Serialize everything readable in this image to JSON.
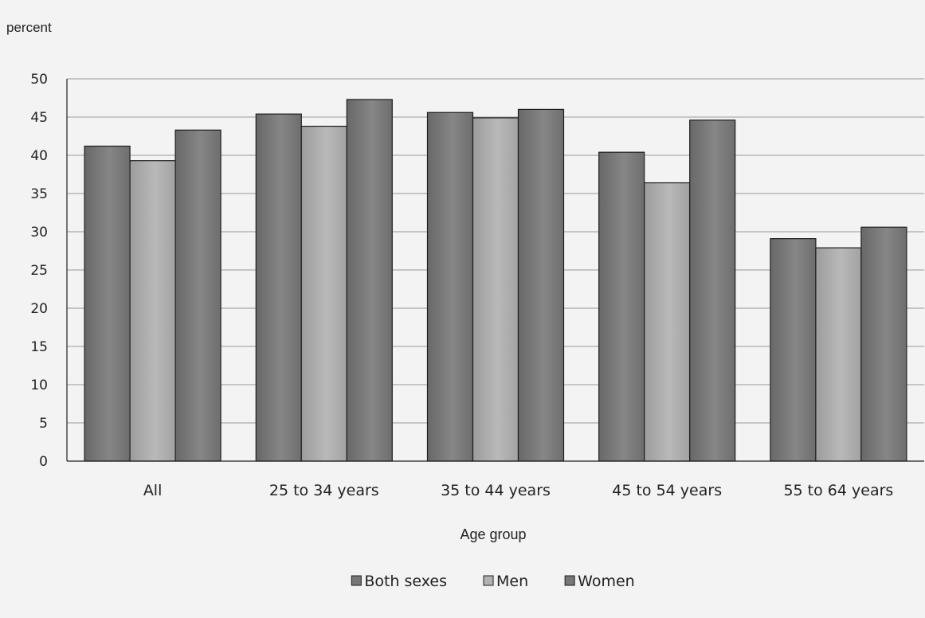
{
  "chart_data": {
    "type": "bar",
    "unit_label": "percent",
    "xlabel": "Age group",
    "ylabel": "",
    "ylim": [
      0,
      50
    ],
    "ytick_step": 5,
    "grid": true,
    "legend_position": "bottom-center",
    "categories": [
      "All",
      "25 to 34 years",
      "35 to 44 years",
      "45 to 54 years",
      "55 to 64 years"
    ],
    "series": [
      {
        "name": "Both sexes",
        "color": "#7a7a7a",
        "values": [
          41.2,
          45.4,
          45.6,
          40.4,
          29.1
        ]
      },
      {
        "name": "Men",
        "color": "#adadad",
        "values": [
          39.3,
          43.8,
          44.9,
          36.4,
          27.9
        ]
      },
      {
        "name": "Women",
        "color": "#7a7a7a",
        "values": [
          43.3,
          47.3,
          46.0,
          44.6,
          30.6
        ]
      }
    ]
  }
}
